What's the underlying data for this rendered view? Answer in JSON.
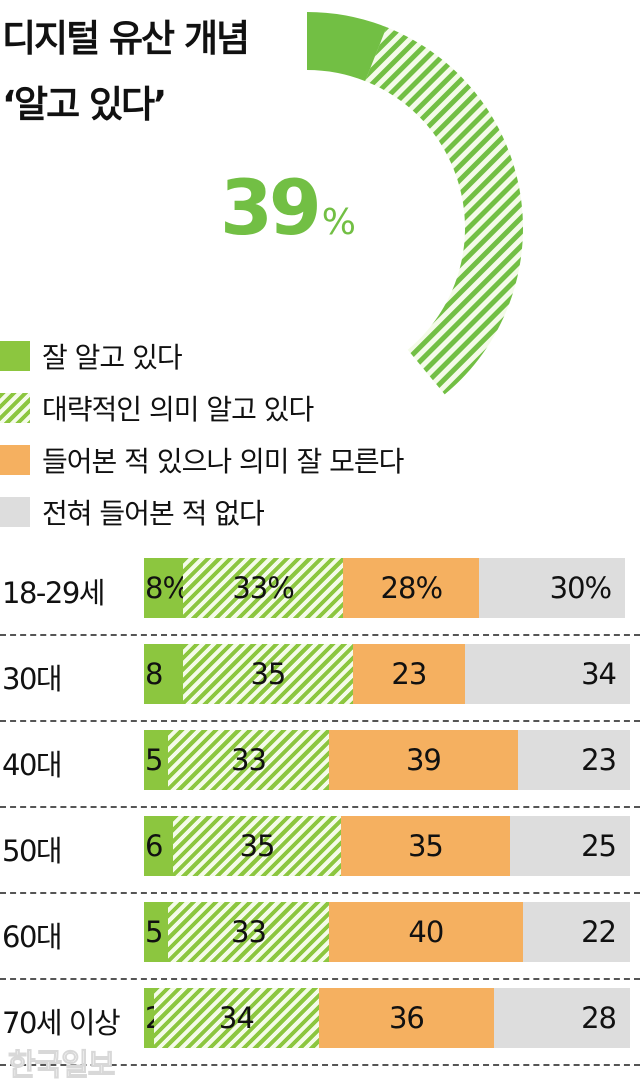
{
  "title": {
    "line1": "디지털 유산 개념",
    "line2": "‘알고 있다’"
  },
  "headline": {
    "value": "39",
    "unit": "%"
  },
  "colors": {
    "well_known": "#8cc63f",
    "roughly_known": "#8cc63f-hatched",
    "heard_not_known": "#f5b060",
    "never_heard": "#dddddd",
    "headline": "#72bf44"
  },
  "legend": [
    {
      "label": "잘 알고 있다",
      "swatch": "solid-green"
    },
    {
      "label": "대략적인 의미 알고 있다",
      "swatch": "hatched-green"
    },
    {
      "label": "들어본 적 있으나 의미 잘 모른다",
      "swatch": "orange"
    },
    {
      "label": "전혀 들어본 적 없다",
      "swatch": "gray"
    }
  ],
  "rows": [
    {
      "label": "18-29세",
      "values": [
        "8%",
        "33%",
        "28%",
        "30%"
      ]
    },
    {
      "label": "30대",
      "values": [
        "8",
        "35",
        "23",
        "34"
      ]
    },
    {
      "label": "40대",
      "values": [
        "5",
        "33",
        "39",
        "23"
      ]
    },
    {
      "label": "50대",
      "values": [
        "6",
        "35",
        "35",
        "25"
      ]
    },
    {
      "label": "60대",
      "values": [
        "5",
        "33",
        "40",
        "22"
      ]
    },
    {
      "label": "70세 이상",
      "values": [
        "2",
        "34",
        "36",
        "28"
      ]
    }
  ],
  "watermark": "한국일보",
  "chart_data": [
    {
      "type": "pie",
      "title": "디지털 유산 개념 ‘알고 있다’",
      "total_label": "39%",
      "slices": [
        {
          "name": "잘 알고 있다",
          "value": 6
        },
        {
          "name": "대략적인 의미 알고 있다",
          "value": 33
        }
      ],
      "note": "partial donut arc totaling 39% of circle"
    },
    {
      "type": "bar",
      "orientation": "horizontal-stacked",
      "unit": "%",
      "categories": [
        "18-29세",
        "30대",
        "40대",
        "50대",
        "60대",
        "70세 이상"
      ],
      "series": [
        {
          "name": "잘 알고 있다",
          "values": [
            8,
            8,
            5,
            6,
            5,
            2
          ]
        },
        {
          "name": "대략적인 의미 알고 있다",
          "values": [
            33,
            35,
            33,
            35,
            33,
            34
          ]
        },
        {
          "name": "들어본 적 있으나 의미 잘 모른다",
          "values": [
            28,
            23,
            39,
            35,
            40,
            36
          ]
        },
        {
          "name": "전혀 들어본 적 없다",
          "values": [
            30,
            34,
            23,
            25,
            22,
            28
          ]
        }
      ],
      "legend_position": "top",
      "grid": false
    }
  ]
}
